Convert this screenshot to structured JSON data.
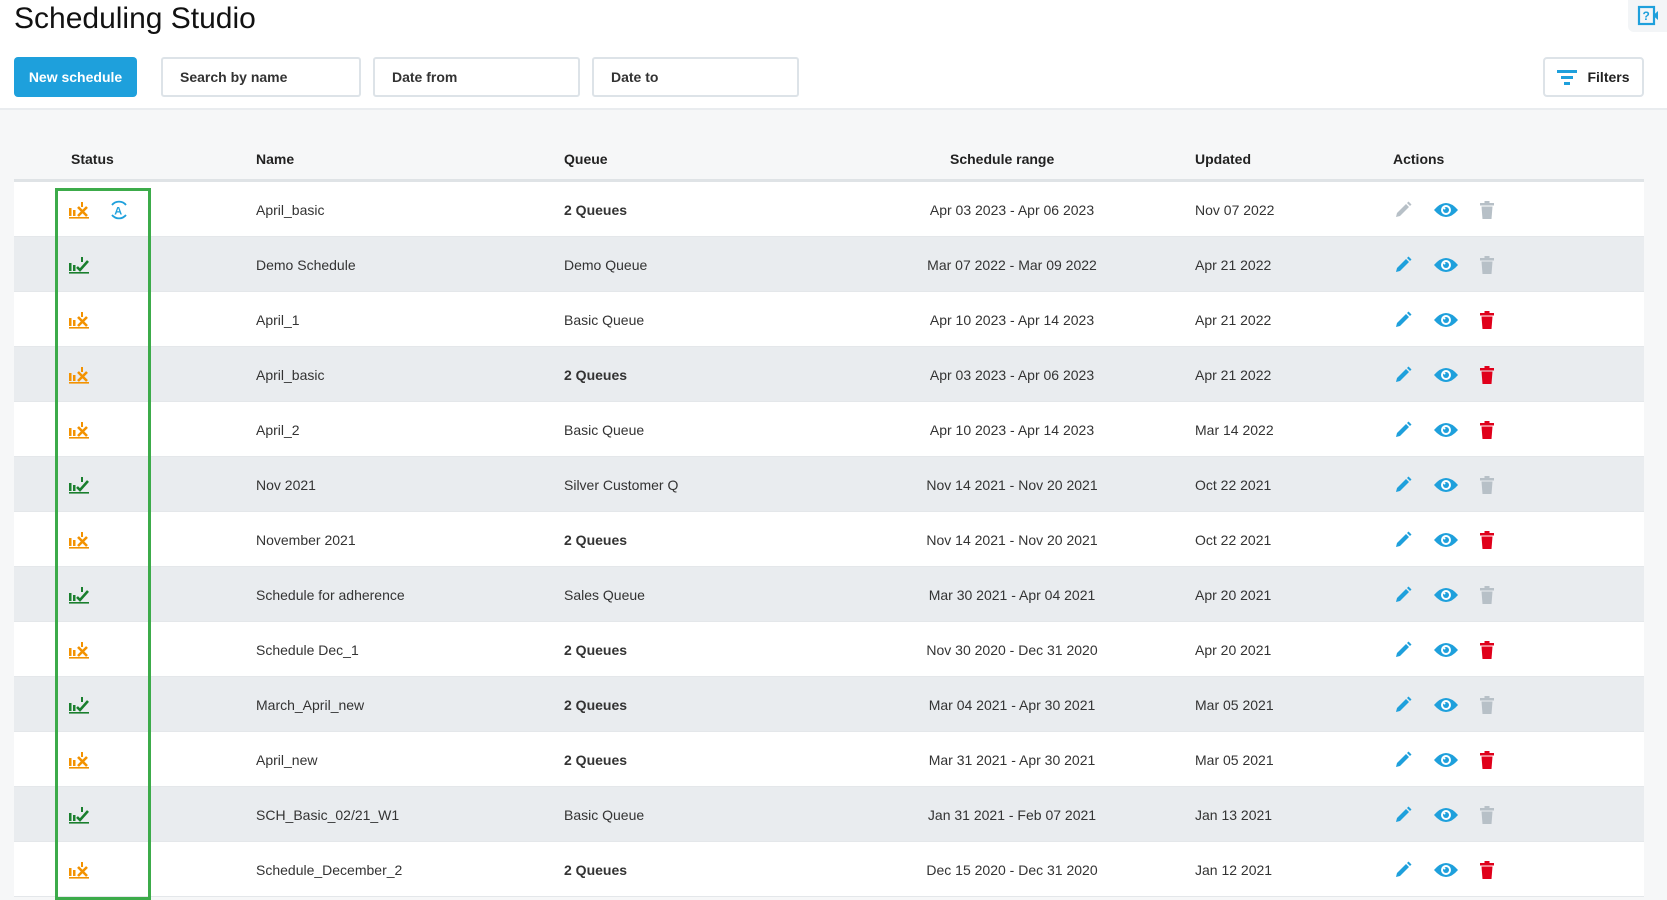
{
  "title": "Scheduling Studio",
  "toolbar": {
    "new_label": "New schedule",
    "search_placeholder": "Search by name",
    "date_from_placeholder": "Date from",
    "date_to_placeholder": "Date to",
    "filters_label": "Filters"
  },
  "columns": {
    "status": "Status",
    "name": "Name",
    "queue": "Queue",
    "range": "Schedule range",
    "updated": "Updated",
    "actions": "Actions"
  },
  "colors": {
    "accent": "#1ea0dc",
    "orange": "#f39200",
    "green": "#1a7f2e",
    "red": "#e0001b",
    "disabled": "#b7c0c7",
    "highlight": "#3cab4a"
  },
  "rows": [
    {
      "status": "not-published",
      "auto": true,
      "name": "April_basic",
      "queue": "2 Queues",
      "queue_bold": true,
      "range": "Apr 03 2023 - Apr 06 2023",
      "updated": "Nov 07 2022",
      "edit": false,
      "delete": false
    },
    {
      "status": "published",
      "name": "Demo Schedule",
      "queue": "Demo Queue",
      "range": "Mar 07 2022 - Mar 09 2022",
      "updated": "Apr 21 2022",
      "edit": true,
      "delete": false
    },
    {
      "status": "not-published",
      "name": "April_1",
      "queue": "Basic Queue",
      "range": "Apr 10 2023 - Apr 14 2023",
      "updated": "Apr 21 2022",
      "edit": true,
      "delete": true
    },
    {
      "status": "not-published",
      "name": "April_basic",
      "queue": "2 Queues",
      "queue_bold": true,
      "range": "Apr 03 2023 - Apr 06 2023",
      "updated": "Apr 21 2022",
      "edit": true,
      "delete": true
    },
    {
      "status": "not-published",
      "name": "April_2",
      "queue": "Basic Queue",
      "range": "Apr 10 2023 - Apr 14 2023",
      "updated": "Mar 14 2022",
      "edit": true,
      "delete": true
    },
    {
      "status": "published",
      "name": "Nov 2021",
      "queue": "Silver Customer Q",
      "range": "Nov 14 2021 - Nov 20 2021",
      "updated": "Oct 22 2021",
      "edit": true,
      "delete": false
    },
    {
      "status": "not-published",
      "name": "November 2021",
      "queue": "2 Queues",
      "queue_bold": true,
      "range": "Nov 14 2021 - Nov 20 2021",
      "updated": "Oct 22 2021",
      "edit": true,
      "delete": true
    },
    {
      "status": "published",
      "name": "Schedule for adherence",
      "queue": "Sales Queue",
      "range": "Mar 30 2021 - Apr 04 2021",
      "updated": "Apr 20 2021",
      "edit": true,
      "delete": false
    },
    {
      "status": "not-published",
      "name": "Schedule Dec_1",
      "queue": "2 Queues",
      "queue_bold": true,
      "range": "Nov 30 2020 - Dec 31 2020",
      "updated": "Apr 20 2021",
      "edit": true,
      "delete": true
    },
    {
      "status": "published",
      "name": "March_April_new",
      "queue": "2 Queues",
      "queue_bold": true,
      "range": "Mar 04 2021 - Apr 30 2021",
      "updated": "Mar 05 2021",
      "edit": true,
      "delete": false
    },
    {
      "status": "not-published",
      "name": "April_new",
      "queue": "2 Queues",
      "queue_bold": true,
      "range": "Mar 31 2021 - Apr 30 2021",
      "updated": "Mar 05 2021",
      "edit": true,
      "delete": true
    },
    {
      "status": "published",
      "name": "SCH_Basic_02/21_W1",
      "queue": "Basic Queue",
      "range": "Jan 31 2021 - Feb 07 2021",
      "updated": "Jan 13 2021",
      "edit": true,
      "delete": false
    },
    {
      "status": "not-published",
      "name": "Schedule_December_2",
      "queue": "2 Queues",
      "queue_bold": true,
      "range": "Dec 15 2020 - Dec 31 2020",
      "updated": "Jan 12 2021",
      "edit": true,
      "delete": true
    }
  ]
}
